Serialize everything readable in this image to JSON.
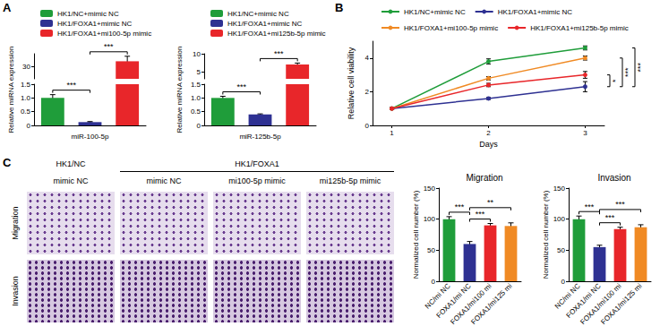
{
  "panel_labels": [
    "A",
    "B",
    "C"
  ],
  "chart_data": [
    {
      "type": "bar",
      "ylabel": "Relative miRNA expression",
      "xlabel": "miR-100-5p",
      "legend": "top-left",
      "grid": false,
      "y_segments": [
        {
          "ylim": [
            0,
            1.5
          ],
          "yticks": [
            0,
            0.5,
            {
              "value": 1,
              "label": "1.0"
            },
            1.5
          ]
        },
        {
          "ylim": [
            25,
            35
          ],
          "yticks": [
            30
          ]
        }
      ],
      "series": [
        {
          "name": "HK1/NC+mimic NC",
          "color": "#1f9d3a",
          "value": 1.0,
          "error": 0.12
        },
        {
          "name": "HK1/FOXA1+mimic NC",
          "color": "#2e3192",
          "value": 0.12,
          "error": 0.02
        },
        {
          "name": "HK1/FOXA1+mi100-5p mimic",
          "color": "#e8262a",
          "value": 32,
          "error": 2
        }
      ],
      "significance": [
        {
          "from": "HK1/NC+mimic NC",
          "to": "HK1/FOXA1+mimic NC",
          "label": "***"
        },
        {
          "from": "HK1/FOXA1+mimic NC",
          "to": "HK1/FOXA1+mi100-5p mimic",
          "label": "***"
        }
      ]
    },
    {
      "type": "bar",
      "ylabel": "Relative miRNA expression",
      "xlabel": "miR-125b-5p",
      "legend": "top-left",
      "grid": false,
      "y_segments": [
        {
          "ylim": [
            0,
            1.5
          ],
          "yticks": [
            0,
            0.5,
            {
              "value": 1,
              "label": "1.0"
            },
            1.5
          ]
        },
        {
          "ylim": [
            3,
            10
          ],
          "yticks": [
            5,
            10
          ]
        }
      ],
      "series": [
        {
          "name": "HK1/NC+mimic NC",
          "color": "#1f9d3a",
          "value": 1.0,
          "error": 0.06
        },
        {
          "name": "HK1/FOXA1+mimic NC",
          "color": "#2e3192",
          "value": 0.4,
          "error": 0.02
        },
        {
          "name": "HK1/FOXA1+mi125b-5p mimic",
          "color": "#e8262a",
          "value": 7.0,
          "error": 0.4
        }
      ],
      "significance": [
        {
          "from": "HK1/NC+mimic NC",
          "to": "HK1/FOXA1+mimic NC",
          "label": "***"
        },
        {
          "from": "HK1/FOXA1+mimic NC",
          "to": "HK1/FOXA1+mi125b-5p mimic",
          "label": "***"
        }
      ]
    },
    {
      "type": "line",
      "xlabel": "Days",
      "ylabel": "Relative cell viability",
      "legend": "top-left",
      "grid": false,
      "marker": "circle",
      "line_style": "solid",
      "x": [
        1,
        2,
        3
      ],
      "xlim": [
        0.8,
        3.2
      ],
      "xticks": [
        1,
        2,
        3
      ],
      "ylim": [
        0,
        5
      ],
      "yticks": [
        0,
        2,
        4
      ],
      "series": [
        {
          "name": "HK1/NC+mimic NC",
          "color": "#1f9d3a",
          "values": [
            1.0,
            3.8,
            4.6
          ],
          "errors": [
            0.05,
            0.15,
            0.12
          ]
        },
        {
          "name": "HK1/FOXA1+mimic NC",
          "color": "#2e3192",
          "values": [
            1.0,
            1.6,
            2.3
          ],
          "errors": [
            0.05,
            0.06,
            0.3
          ]
        },
        {
          "name": "HK1/FOXA1+mi100-5p mimic",
          "color": "#f08a24",
          "values": [
            1.0,
            2.8,
            4.0
          ],
          "errors": [
            0.05,
            0.1,
            0.12
          ]
        },
        {
          "name": "HK1/FOXA1+mi125b-5p mimic",
          "color": "#e8262a",
          "values": [
            1.0,
            2.4,
            3.0
          ],
          "errors": [
            0.05,
            0.1,
            0.2
          ]
        }
      ],
      "significance": [
        {
          "from": "HK1/FOXA1+mimic NC",
          "to": "HK1/FOXA1+mi125b-5p mimic",
          "label": "*"
        },
        {
          "from": "HK1/FOXA1+mimic NC",
          "to": "HK1/FOXA1+mi100-5p mimic",
          "label": "***"
        },
        {
          "from": "HK1/NC+mimic NC",
          "to": "HK1/FOXA1+mimic NC",
          "label": "***"
        }
      ]
    },
    {
      "type": "bar",
      "title": "Migration",
      "ylabel": "Normalized cell number (%)",
      "grid": false,
      "categories": [
        "NC/mi NC",
        "FOXA1/mi NC",
        "FOXA1/mi100 mi",
        "FOXA1/mi125 mi"
      ],
      "values": [
        100,
        60,
        90,
        89
      ],
      "errors": [
        4,
        4,
        3,
        5
      ],
      "colors": [
        "#1f9d3a",
        "#2e3192",
        "#e8262a",
        "#f08a24"
      ],
      "ylim": [
        0,
        150
      ],
      "yticks": [
        0,
        50,
        100,
        150
      ],
      "significance": [
        {
          "from": "NC/mi NC",
          "to": "FOXA1/mi NC",
          "label": "***"
        },
        {
          "from": "FOXA1/mi NC",
          "to": "FOXA1/mi100 mi",
          "label": "***"
        },
        {
          "from": "FOXA1/mi NC",
          "to": "FOXA1/mi125 mi",
          "label": "**"
        }
      ]
    },
    {
      "type": "bar",
      "title": "Invasion",
      "ylabel": "Normalized cell number (%)",
      "grid": false,
      "categories": [
        "NC/mi NC",
        "FOXA1/mi NC",
        "FOXA1/mi100 mi",
        "FOXA1/mi125 mi"
      ],
      "values": [
        100,
        55,
        84,
        87
      ],
      "errors": [
        5,
        3,
        3,
        4
      ],
      "colors": [
        "#1f9d3a",
        "#2e3192",
        "#e8262a",
        "#f08a24"
      ],
      "ylim": [
        0,
        150
      ],
      "yticks": [
        0,
        50,
        100,
        150
      ],
      "significance": [
        {
          "from": "NC/mi NC",
          "to": "FOXA1/mi NC",
          "label": "***"
        },
        {
          "from": "FOXA1/mi NC",
          "to": "FOXA1/mi100 mi",
          "label": "***"
        },
        {
          "from": "FOXA1/mi NC",
          "to": "FOXA1/mi125 mi",
          "label": "***"
        }
      ]
    }
  ],
  "image_panel": {
    "column_groups": [
      {
        "label": "HK1/NC",
        "columns": [
          "mimic NC"
        ]
      },
      {
        "label": "HK1/FOXA1",
        "columns": [
          "mimic NC",
          "mi100-5p mimic",
          "mi125b-5p mimic"
        ]
      }
    ],
    "rows": [
      "Migration",
      "Invasion"
    ]
  }
}
